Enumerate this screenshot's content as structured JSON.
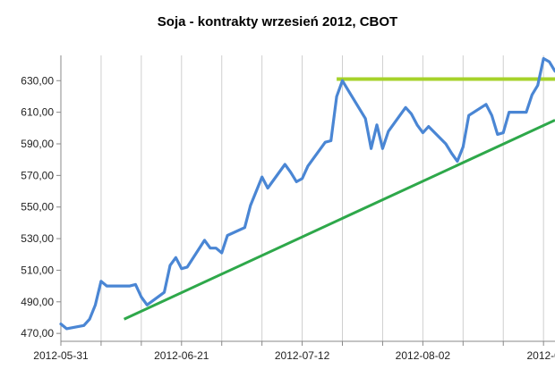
{
  "chart_data": {
    "type": "line",
    "title": "Soja - kontrakty wrzesień 2012, CBOT",
    "xlabel": "",
    "ylabel": "",
    "x_tick_labels": [
      "2012-05-31",
      "2012-06-21",
      "2012-07-12",
      "2012-08-02",
      "2012-0"
    ],
    "y_tick_labels": [
      "470,00",
      "490,00",
      "510,00",
      "530,00",
      "550,00",
      "570,00",
      "590,00",
      "610,00",
      "630,00"
    ],
    "ylim": [
      465,
      646
    ],
    "xlim": [
      "2012-05-31",
      "2012-08-25"
    ],
    "grid": "vertical",
    "series": [
      {
        "color": "#4a86d4",
        "points": [
          [
            "2012-05-31",
            476
          ],
          [
            "2012-06-01",
            473
          ],
          [
            "2012-06-04",
            475
          ],
          [
            "2012-06-05",
            479
          ],
          [
            "2012-06-06",
            488
          ],
          [
            "2012-06-07",
            503
          ],
          [
            "2012-06-08",
            500
          ],
          [
            "2012-06-11",
            500
          ],
          [
            "2012-06-12",
            500
          ],
          [
            "2012-06-13",
            501
          ],
          [
            "2012-06-14",
            493
          ],
          [
            "2012-06-15",
            488
          ],
          [
            "2012-06-18",
            496
          ],
          [
            "2012-06-19",
            513
          ],
          [
            "2012-06-20",
            518
          ],
          [
            "2012-06-21",
            511
          ],
          [
            "2012-06-22",
            512
          ],
          [
            "2012-06-25",
            529
          ],
          [
            "2012-06-26",
            524
          ],
          [
            "2012-06-27",
            524
          ],
          [
            "2012-06-28",
            521
          ],
          [
            "2012-06-29",
            532
          ],
          [
            "2012-07-02",
            537
          ],
          [
            "2012-07-03",
            551
          ],
          [
            "2012-07-05",
            569
          ],
          [
            "2012-07-06",
            562
          ],
          [
            "2012-07-09",
            577
          ],
          [
            "2012-07-10",
            572
          ],
          [
            "2012-07-11",
            566
          ],
          [
            "2012-07-12",
            568
          ],
          [
            "2012-07-13",
            576
          ],
          [
            "2012-07-16",
            591
          ],
          [
            "2012-07-17",
            592
          ],
          [
            "2012-07-18",
            620
          ],
          [
            "2012-07-19",
            630
          ],
          [
            "2012-07-20",
            624
          ],
          [
            "2012-07-23",
            606
          ],
          [
            "2012-07-24",
            587
          ],
          [
            "2012-07-25",
            602
          ],
          [
            "2012-07-26",
            587
          ],
          [
            "2012-07-27",
            598
          ],
          [
            "2012-07-30",
            613
          ],
          [
            "2012-07-31",
            609
          ],
          [
            "2012-08-01",
            602
          ],
          [
            "2012-08-02",
            597
          ],
          [
            "2012-08-03",
            601
          ],
          [
            "2012-08-06",
            590
          ],
          [
            "2012-08-07",
            584
          ],
          [
            "2012-08-08",
            579
          ],
          [
            "2012-08-09",
            588
          ],
          [
            "2012-08-10",
            608
          ],
          [
            "2012-08-13",
            615
          ],
          [
            "2012-08-14",
            608
          ],
          [
            "2012-08-15",
            596
          ],
          [
            "2012-08-16",
            597
          ],
          [
            "2012-08-17",
            610
          ],
          [
            "2012-08-20",
            610
          ],
          [
            "2012-08-21",
            621
          ],
          [
            "2012-08-22",
            627
          ],
          [
            "2012-08-23",
            644
          ],
          [
            "2012-08-24",
            642
          ],
          [
            "2012-08-25",
            636
          ]
        ]
      }
    ],
    "annotations": [
      {
        "type": "horizontal-line",
        "color": "#a6d22a",
        "y": 631,
        "x_start": "2012-07-18",
        "x_end": "2012-08-25"
      },
      {
        "type": "trend-line",
        "color": "#2ea84a",
        "points": [
          [
            "2012-06-11",
            479
          ],
          [
            "2012-08-25",
            605
          ]
        ]
      }
    ]
  }
}
